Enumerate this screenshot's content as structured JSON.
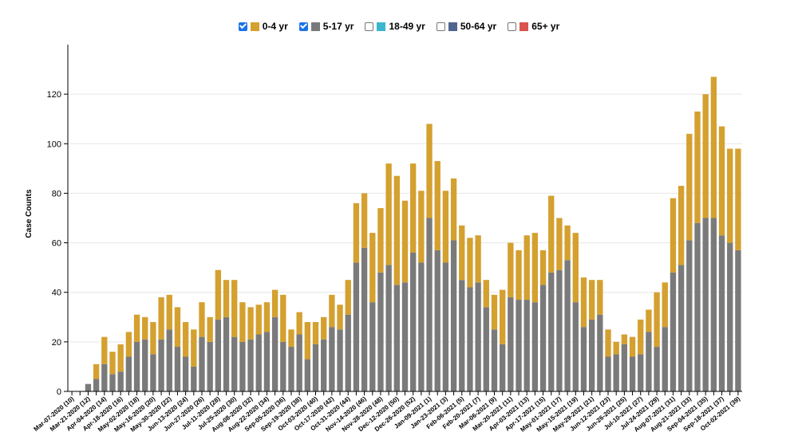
{
  "legend": [
    {
      "label": "0-4 yr",
      "checked": true,
      "color": "#d4a02f"
    },
    {
      "label": "5-17 yr",
      "checked": true,
      "color": "#7a7a7a"
    },
    {
      "label": "18-49 yr",
      "checked": false,
      "color": "#3cb6cf"
    },
    {
      "label": "50-64 yr",
      "checked": false,
      "color": "#4e6590"
    },
    {
      "label": "65+ yr",
      "checked": false,
      "color": "#d9534f"
    }
  ],
  "chart_data": {
    "type": "bar",
    "stacked": true,
    "ylabel": "Case Counts",
    "xlabel": "",
    "ylim": [
      0,
      140
    ],
    "yticks": [
      0,
      20,
      40,
      60,
      80,
      100,
      120
    ],
    "grid": true,
    "legend_position": "top-center",
    "xtick_labels": [
      "Mar-07-2020 (10)",
      "Mar-21-2020 (12)",
      "Apr-04-2020 (14)",
      "Apr-18-2020 (16)",
      "May-02-2020 (18)",
      "May-16-2020 (20)",
      "May-30-2020 (22)",
      "Jun-13-2020 (24)",
      "Jun-27-2020 (26)",
      "Jul-11-2020 (28)",
      "Jul-25-2020 (30)",
      "Aug-08-2020 (32)",
      "Aug-22-2020 (34)",
      "Sep-05-2020 (36)",
      "Sep-19-2020 (38)",
      "Oct-03-2020 (40)",
      "Oct-17-2020 (42)",
      "Oct-31-2020 (44)",
      "Nov-14-2020 (46)",
      "Nov-28-2020 (48)",
      "Dec-12-2020 (50)",
      "Dec-26-2020 (52)",
      "Jan-09-2021 (1)",
      "Jan-23-2021 (3)",
      "Feb-06-2021 (5)",
      "Feb-20-2021 (7)",
      "Mar-06-2021 (9)",
      "Mar-20-2021 (11)",
      "Apr-03-2021 (13)",
      "Apr-17-2021 (15)",
      "May-01-2021 (17)",
      "May-15-2021 (19)",
      "May-29-2021 (21)",
      "Jun-12-2021 (23)",
      "Jun-26-2021 (25)",
      "Jul-10-2021 (27)",
      "Jul-24-2021 (29)",
      "Aug-07-2021 (31)",
      "Aug-21-2021 (33)",
      "Sep-04-2021 (35)",
      "Sep-18-2021 (37)",
      "Oct-02-2021 (39)"
    ],
    "series": [
      {
        "name": "5-17 yr",
        "color": "#7a7a7a",
        "values": [
          0,
          0,
          3,
          5,
          11,
          7,
          8,
          14,
          20,
          21,
          15,
          21,
          25,
          18,
          14,
          10,
          22,
          20,
          29,
          30,
          22,
          20,
          21,
          23,
          24,
          30,
          20,
          18,
          23,
          13,
          19,
          21,
          26,
          25,
          31,
          52,
          58,
          36,
          48,
          51,
          43,
          44,
          56,
          52,
          70,
          57,
          52,
          61,
          45,
          42,
          44,
          34,
          25,
          19,
          38,
          37,
          37,
          36,
          43,
          48,
          49,
          53,
          36,
          26,
          29,
          31,
          14,
          15,
          19,
          14,
          15,
          24,
          18,
          26,
          48,
          51,
          61,
          68,
          70,
          70,
          63,
          60,
          57
        ]
      },
      {
        "name": "0-4 yr",
        "color": "#d4a02f",
        "values": [
          0,
          0,
          0,
          6,
          11,
          9,
          11,
          10,
          11,
          9,
          13,
          17,
          14,
          16,
          14,
          15,
          14,
          10,
          20,
          15,
          23,
          16,
          13,
          12,
          12,
          11,
          19,
          7,
          9,
          15,
          9,
          9,
          13,
          10,
          14,
          24,
          22,
          28,
          26,
          41,
          44,
          33,
          36,
          29,
          38,
          36,
          29,
          25,
          22,
          20,
          19,
          11,
          14,
          22,
          22,
          20,
          26,
          28,
          14,
          31,
          21,
          14,
          28,
          20,
          16,
          14,
          11,
          5,
          4,
          8,
          14,
          9,
          22,
          18,
          30,
          32,
          43,
          45,
          50,
          57,
          44,
          38,
          41
        ]
      }
    ]
  }
}
